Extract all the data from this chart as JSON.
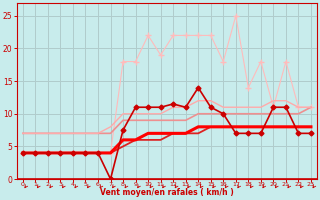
{
  "xlabel": "Vent moyen/en rafales ( km/h )",
  "background_color": "#c8ecec",
  "grid_color": "#b0cccc",
  "xlim": [
    -0.5,
    23.5
  ],
  "ylim": [
    0,
    27
  ],
  "yticks": [
    0,
    5,
    10,
    15,
    20,
    25
  ],
  "xticks": [
    0,
    1,
    2,
    3,
    4,
    5,
    6,
    7,
    8,
    9,
    10,
    11,
    12,
    13,
    14,
    15,
    16,
    17,
    18,
    19,
    20,
    21,
    22,
    23
  ],
  "series": [
    {
      "x": [
        0,
        1,
        2,
        3,
        4,
        5,
        6,
        7,
        8,
        9,
        10,
        11,
        12,
        13,
        14,
        15,
        16,
        17,
        18,
        19,
        20,
        21,
        22,
        23
      ],
      "y": [
        4,
        4,
        4,
        4,
        4,
        4,
        4,
        0,
        7.5,
        11,
        11,
        11,
        11.5,
        11,
        14,
        11,
        10,
        7,
        7,
        7,
        11,
        11,
        7,
        7
      ],
      "color": "#cc0000",
      "lw": 1.2,
      "marker": "D",
      "markersize": 2.5,
      "zorder": 6
    },
    {
      "x": [
        0,
        1,
        2,
        3,
        4,
        5,
        6,
        7,
        8,
        9,
        10,
        11,
        12,
        13,
        14,
        15,
        16,
        17,
        18,
        19,
        20,
        21,
        22,
        23
      ],
      "y": [
        4,
        4,
        4,
        4,
        4,
        4,
        4,
        4,
        6,
        6,
        7,
        7,
        7,
        7,
        8,
        8,
        8,
        8,
        8,
        8,
        8,
        8,
        8,
        8
      ],
      "color": "#ff0000",
      "lw": 2.2,
      "marker": null,
      "zorder": 5
    },
    {
      "x": [
        0,
        1,
        2,
        3,
        4,
        5,
        6,
        7,
        8,
        9,
        10,
        11,
        12,
        13,
        14,
        15,
        16,
        17,
        18,
        19,
        20,
        21,
        22,
        23
      ],
      "y": [
        4,
        4,
        4,
        4,
        4,
        4,
        4,
        4,
        5,
        6,
        6,
        6,
        7,
        7,
        7,
        8,
        8,
        8,
        8,
        8,
        8,
        8,
        8,
        8
      ],
      "color": "#dd2222",
      "lw": 1.3,
      "marker": null,
      "zorder": 4
    },
    {
      "x": [
        0,
        1,
        2,
        3,
        4,
        5,
        6,
        7,
        8,
        9,
        10,
        11,
        12,
        13,
        14,
        15,
        16,
        17,
        18,
        19,
        20,
        21,
        22,
        23
      ],
      "y": [
        7,
        7,
        7,
        7,
        7,
        7,
        7,
        7,
        9,
        9,
        9,
        9,
        9,
        9,
        10,
        10,
        10,
        10,
        10,
        10,
        10,
        10,
        10,
        11
      ],
      "color": "#ee9090",
      "lw": 1.2,
      "marker": null,
      "zorder": 3
    },
    {
      "x": [
        0,
        1,
        2,
        3,
        4,
        5,
        6,
        7,
        8,
        9,
        10,
        11,
        12,
        13,
        14,
        15,
        16,
        17,
        18,
        19,
        20,
        21,
        22,
        23
      ],
      "y": [
        7,
        7,
        7,
        7,
        7,
        7,
        7,
        8,
        10,
        10,
        10,
        10,
        11,
        11,
        12,
        12,
        11,
        11,
        11,
        11,
        12,
        12,
        11,
        11
      ],
      "color": "#ffaaaa",
      "lw": 1.0,
      "marker": null,
      "zorder": 3
    },
    {
      "x": [
        0,
        1,
        2,
        3,
        4,
        5,
        6,
        7,
        8,
        9,
        10,
        11,
        12,
        13,
        14,
        15,
        16,
        17,
        18,
        19,
        20,
        21,
        22,
        23
      ],
      "y": [
        4,
        4,
        4,
        4,
        4,
        4,
        4,
        4,
        18,
        18,
        22,
        19,
        22,
        22,
        22,
        22,
        18,
        25,
        14,
        18,
        11,
        18,
        11,
        11
      ],
      "color": "#ffbbbb",
      "lw": 0.8,
      "marker": "+",
      "markersize": 4,
      "zorder": 2
    }
  ],
  "arrow_color": "#cc0000",
  "xlabel_color": "#cc0000",
  "tick_color": "#cc0000"
}
